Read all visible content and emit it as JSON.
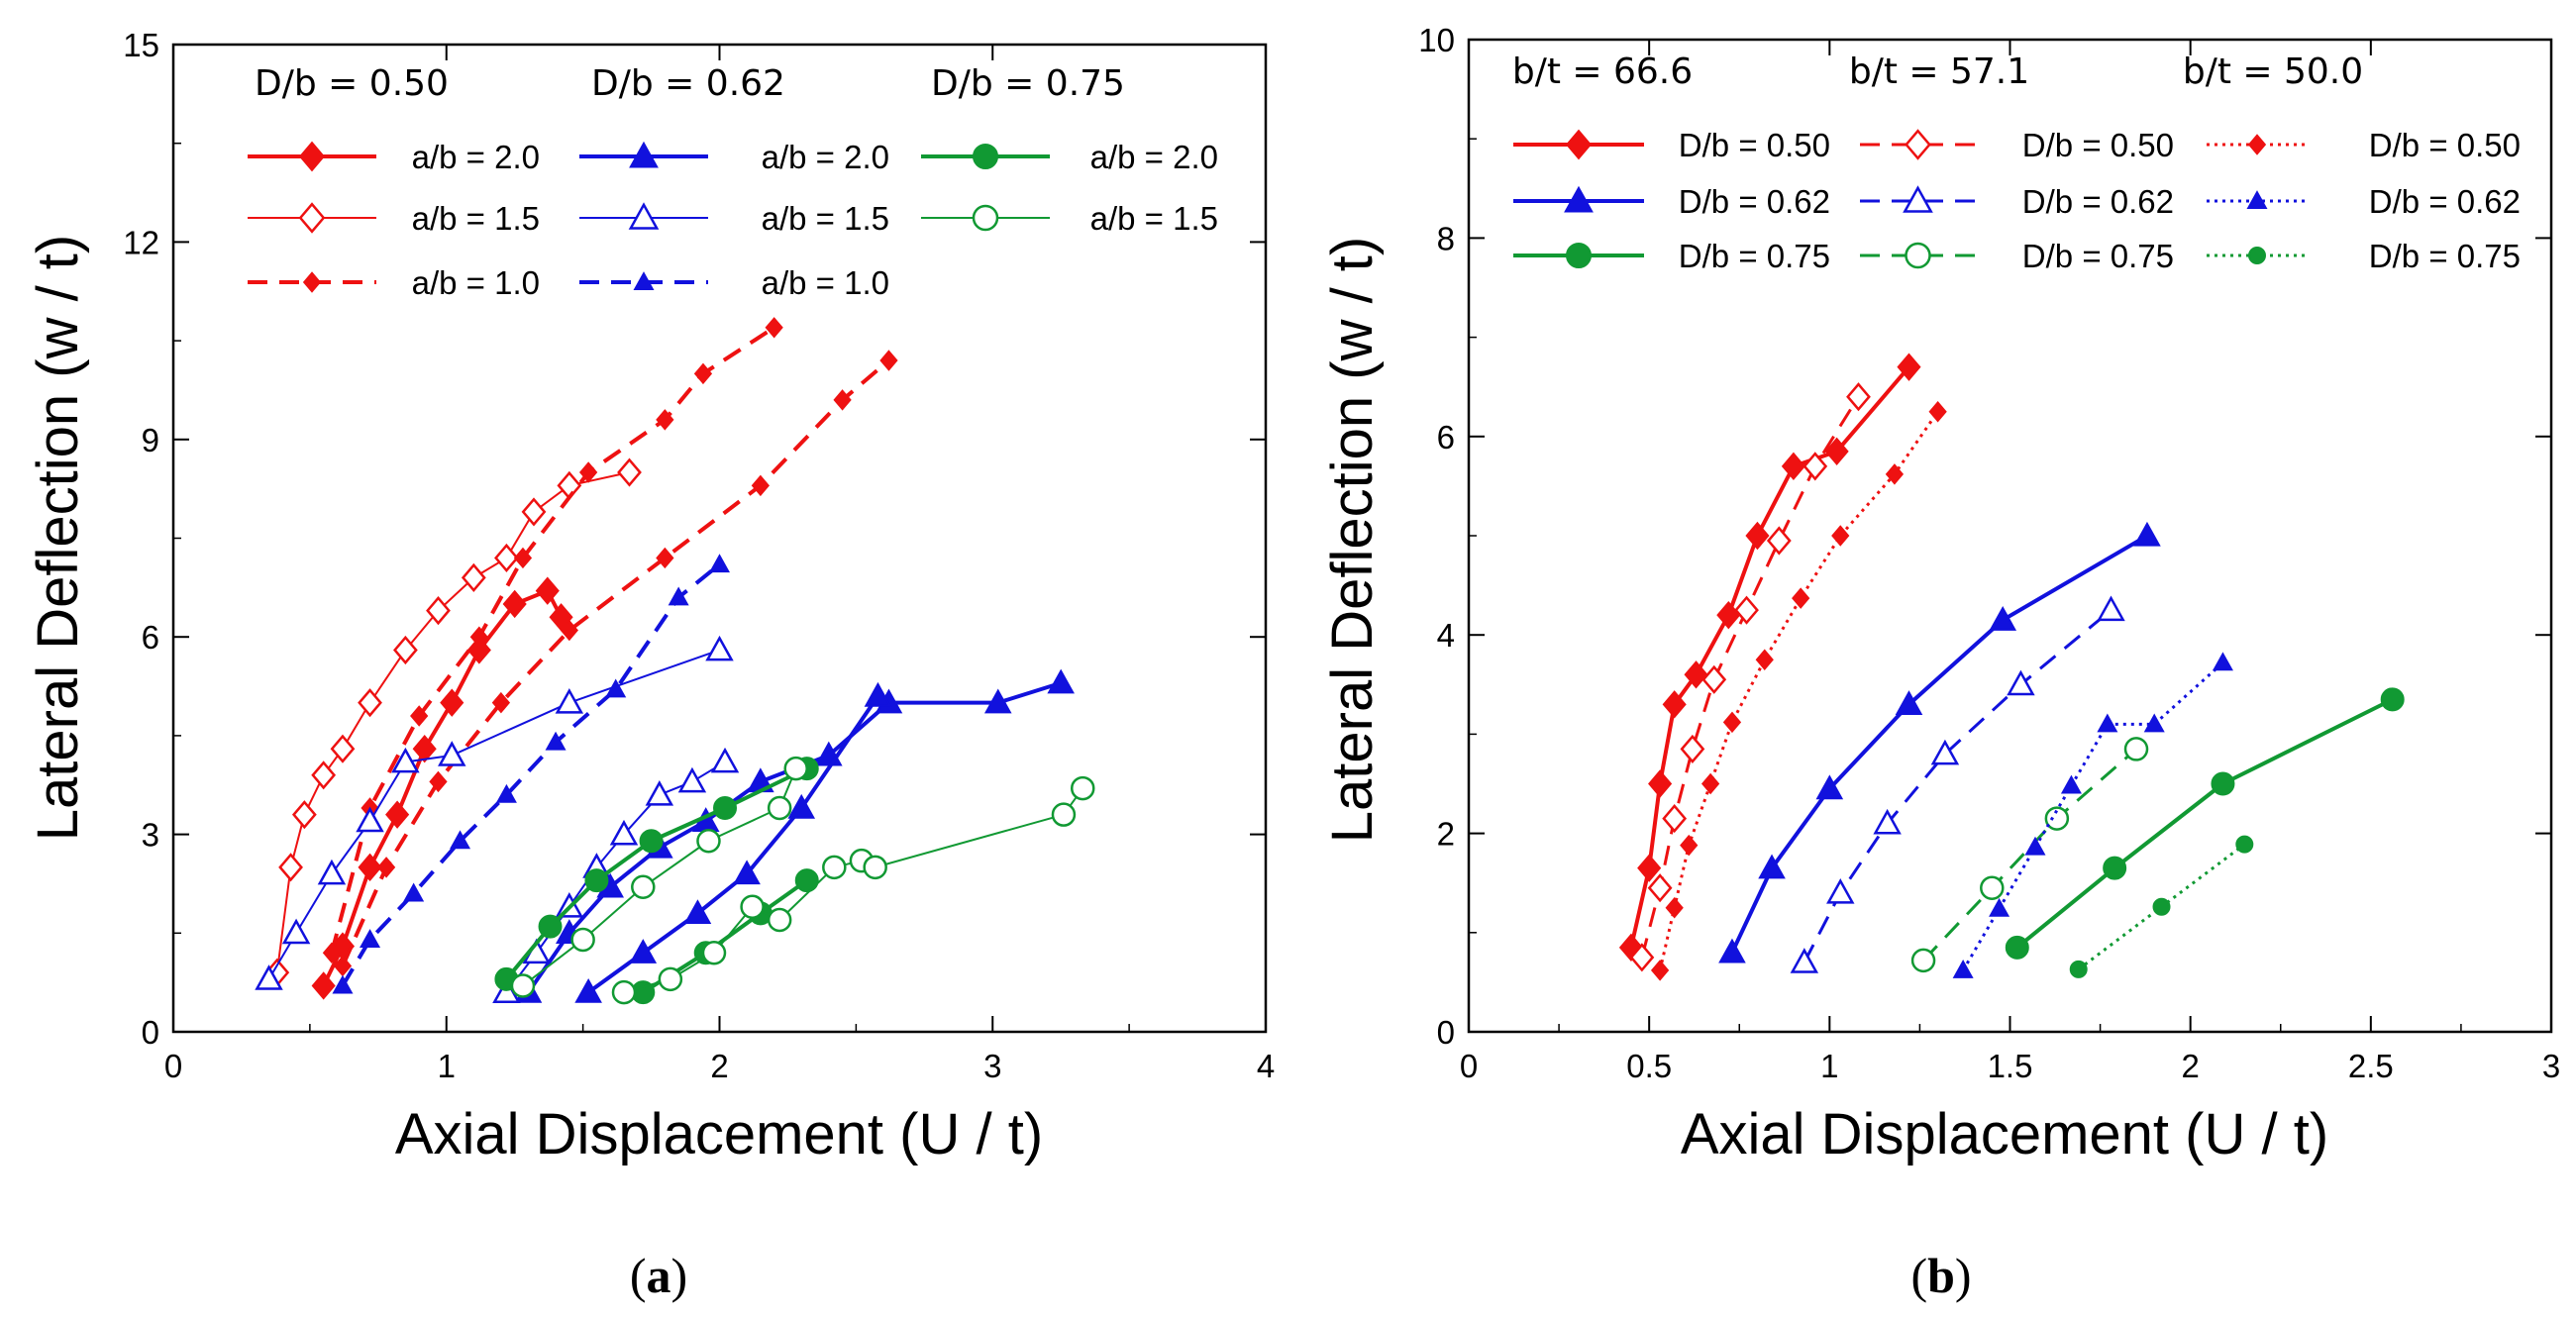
{
  "colors": {
    "red": "#ee1111",
    "blue": "#1111dd",
    "green": "#119933"
  },
  "chart_data": [
    {
      "id": "a",
      "type": "line",
      "caption_letter": "a",
      "xlabel": "Axial Displacement (U / t)",
      "ylabel": "Lateral Deflection (w / t)",
      "xlim": [
        0,
        4
      ],
      "ylim": [
        0,
        15
      ],
      "xticks": [
        "0",
        "1",
        "2",
        "3",
        "4"
      ],
      "yticks": [
        "0",
        "3",
        "6",
        "9",
        "12",
        "15"
      ],
      "legend_headers": [
        "D/b = 0.50",
        "D/b = 0.62",
        "D/b = 0.75"
      ],
      "series": [
        {
          "name": "a/b = 2.0",
          "group": "D/b = 0.50",
          "color": "red",
          "marker": "diamond",
          "fill": "filled",
          "dash": "solid",
          "width": 4,
          "x": [
            0.55,
            0.62,
            0.72,
            0.82,
            0.92,
            1.02,
            1.12,
            1.25,
            1.37,
            1.42
          ],
          "y": [
            0.7,
            1.3,
            2.5,
            3.3,
            4.3,
            5.0,
            5.8,
            6.5,
            6.7,
            6.3
          ]
        },
        {
          "name": "a/b = 1.5",
          "group": "D/b = 0.50",
          "color": "red",
          "marker": "diamond",
          "fill": "open",
          "dash": "solid",
          "width": 2,
          "x": [
            0.38,
            0.43,
            0.48,
            0.55,
            0.62,
            0.72,
            0.85,
            0.97,
            1.1,
            1.22,
            1.32,
            1.45,
            1.67
          ],
          "y": [
            0.9,
            2.5,
            3.3,
            3.9,
            4.3,
            5.0,
            5.8,
            6.4,
            6.9,
            7.2,
            7.9,
            8.3,
            8.5
          ]
        },
        {
          "name": "a/b = 1.0",
          "group": "D/b = 0.50",
          "color": "red",
          "marker": "diamond",
          "fill": "filled",
          "dash": "dashed",
          "width": 4,
          "small": true,
          "x": [
            0.58,
            0.72,
            0.9,
            1.12,
            1.28,
            1.52,
            1.8,
            1.94,
            2.2
          ],
          "y": [
            1.2,
            3.4,
            4.8,
            6.0,
            7.2,
            8.5,
            9.3,
            10.0,
            10.7
          ]
        },
        {
          "name": "a/b = 1.0 (series 2)",
          "group": "D/b = 0.50",
          "color": "red",
          "marker": "diamond",
          "fill": "filled",
          "dash": "dashed",
          "width": 4,
          "small": true,
          "legend": false,
          "x": [
            0.62,
            0.78,
            0.97,
            1.2,
            1.45,
            1.8,
            2.15,
            2.45,
            2.62
          ],
          "y": [
            1.0,
            2.5,
            3.8,
            5.0,
            6.1,
            7.2,
            8.3,
            9.6,
            10.2
          ]
        },
        {
          "name": "a/b = 2.0",
          "group": "D/b = 0.62",
          "color": "blue",
          "marker": "triangle",
          "fill": "filled",
          "dash": "solid",
          "width": 4,
          "x": [
            1.3,
            1.45,
            1.6,
            1.78,
            1.95,
            2.15,
            2.4,
            2.62,
            3.02,
            3.25
          ],
          "y": [
            0.6,
            1.5,
            2.2,
            2.8,
            3.2,
            3.8,
            4.2,
            5.0,
            5.0,
            5.3
          ]
        },
        {
          "name": "a/b = 2.0 (series 2)",
          "group": "D/b = 0.62",
          "color": "blue",
          "marker": "triangle",
          "fill": "filled",
          "dash": "solid",
          "width": 4,
          "legend": false,
          "x": [
            1.52,
            1.72,
            1.92,
            2.1,
            2.3,
            2.58
          ],
          "y": [
            0.6,
            1.2,
            1.8,
            2.4,
            3.4,
            5.1
          ]
        },
        {
          "name": "a/b = 1.5",
          "group": "D/b = 0.62",
          "color": "blue",
          "marker": "triangle",
          "fill": "open",
          "dash": "solid",
          "width": 2,
          "x": [
            0.35,
            0.45,
            0.58,
            0.72,
            0.85,
            1.02,
            1.45,
            2.0
          ],
          "y": [
            0.8,
            1.5,
            2.4,
            3.2,
            4.1,
            4.2,
            5.0,
            5.8
          ]
        },
        {
          "name": "a/b = 1.5 (series 2)",
          "group": "D/b = 0.62",
          "color": "blue",
          "marker": "triangle",
          "fill": "open",
          "dash": "solid",
          "width": 2,
          "legend": false,
          "x": [
            1.22,
            1.33,
            1.45,
            1.55,
            1.65,
            1.78,
            1.9,
            2.02
          ],
          "y": [
            0.6,
            1.2,
            1.9,
            2.5,
            3.0,
            3.6,
            3.8,
            4.1
          ]
        },
        {
          "name": "a/b = 1.0",
          "group": "D/b = 0.62",
          "color": "blue",
          "marker": "triangle",
          "fill": "filled",
          "dash": "dashed",
          "width": 4,
          "small": true,
          "x": [
            0.62,
            0.72,
            0.88,
            1.05,
            1.22,
            1.4,
            1.62,
            1.85,
            2.0
          ],
          "y": [
            0.7,
            1.4,
            2.1,
            2.9,
            3.6,
            4.4,
            5.2,
            6.6,
            7.1
          ]
        },
        {
          "name": "a/b = 2.0",
          "group": "D/b = 0.75",
          "color": "green",
          "marker": "circle",
          "fill": "filled",
          "dash": "solid",
          "width": 4,
          "x": [
            1.22,
            1.38,
            1.55,
            1.75,
            2.02,
            2.32
          ],
          "y": [
            0.8,
            1.6,
            2.3,
            2.9,
            3.4,
            4.0
          ]
        },
        {
          "name": "a/b = 2.0 (series 2)",
          "group": "D/b = 0.75",
          "color": "green",
          "marker": "circle",
          "fill": "filled",
          "dash": "solid",
          "width": 4,
          "legend": false,
          "x": [
            1.72,
            1.95,
            2.15,
            2.32
          ],
          "y": [
            0.6,
            1.2,
            1.8,
            2.3
          ]
        },
        {
          "name": "a/b = 1.5",
          "group": "D/b = 0.75",
          "color": "green",
          "marker": "circle",
          "fill": "open",
          "dash": "solid",
          "width": 2,
          "x": [
            1.28,
            1.5,
            1.72,
            1.96,
            2.22,
            2.28
          ],
          "y": [
            0.7,
            1.4,
            2.2,
            2.9,
            3.4,
            4.0
          ]
        },
        {
          "name": "a/b = 1.5 (series 2)",
          "group": "D/b = 0.75",
          "color": "green",
          "marker": "circle",
          "fill": "open",
          "dash": "solid",
          "width": 2,
          "legend": false,
          "x": [
            1.65,
            1.82,
            1.98,
            2.12,
            2.22,
            2.42,
            2.52,
            2.57,
            3.26,
            3.33
          ],
          "y": [
            0.6,
            0.8,
            1.2,
            1.9,
            1.7,
            2.5,
            2.6,
            2.5,
            3.3,
            3.7
          ]
        }
      ],
      "legend_rows": [
        [
          "a/b = 2.0",
          "a/b = 2.0",
          "a/b = 2.0"
        ],
        [
          "a/b = 1.5",
          "a/b = 1.5",
          "a/b = 1.5"
        ],
        [
          "a/b = 1.0",
          "a/b = 1.0",
          ""
        ]
      ]
    },
    {
      "id": "b",
      "type": "line",
      "caption_letter": "b",
      "xlabel": "Axial Displacement (U / t)",
      "ylabel": "Lateral Deflection (w / t)",
      "xlim": [
        0,
        3
      ],
      "ylim": [
        0,
        10
      ],
      "xticks": [
        "0",
        "0.5",
        "1",
        "1.5",
        "2",
        "2.5",
        "3"
      ],
      "yticks": [
        "0",
        "2",
        "4",
        "6",
        "8",
        "10"
      ],
      "legend_headers": [
        "b/t = 66.6",
        "b/t = 57.1",
        "b/t = 50.0"
      ],
      "series": [
        {
          "name": "D/b = 0.50",
          "group": "b/t = 66.6",
          "color": "red",
          "marker": "diamond",
          "fill": "filled",
          "dash": "solid",
          "width": 4,
          "x": [
            0.45,
            0.5,
            0.53,
            0.57,
            0.63,
            0.72,
            0.8,
            0.9,
            1.02,
            1.22
          ],
          "y": [
            0.85,
            1.65,
            2.5,
            3.3,
            3.6,
            4.2,
            5.0,
            5.7,
            5.85,
            6.7
          ]
        },
        {
          "name": "D/b = 0.62",
          "group": "b/t = 66.6",
          "color": "blue",
          "marker": "triangle",
          "fill": "filled",
          "dash": "solid",
          "width": 4,
          "x": [
            0.73,
            0.84,
            1.0,
            1.22,
            1.48,
            1.88
          ],
          "y": [
            0.8,
            1.65,
            2.45,
            3.3,
            4.15,
            5.0
          ]
        },
        {
          "name": "D/b = 0.75",
          "group": "b/t = 66.6",
          "color": "green",
          "marker": "circle",
          "fill": "filled",
          "dash": "solid",
          "width": 4,
          "x": [
            1.52,
            1.79,
            2.09,
            2.56
          ],
          "y": [
            0.85,
            1.65,
            2.5,
            3.35
          ]
        },
        {
          "name": "D/b = 0.50",
          "group": "b/t = 57.1",
          "color": "red",
          "marker": "diamond",
          "fill": "open",
          "dash": "dashed",
          "width": 3,
          "x": [
            0.48,
            0.53,
            0.57,
            0.62,
            0.68,
            0.77,
            0.86,
            0.96,
            1.08
          ],
          "y": [
            0.75,
            1.45,
            2.15,
            2.85,
            3.55,
            4.25,
            4.95,
            5.7,
            6.4
          ]
        },
        {
          "name": "D/b = 0.62",
          "group": "b/t = 57.1",
          "color": "blue",
          "marker": "triangle",
          "fill": "open",
          "dash": "dashed",
          "width": 3,
          "x": [
            0.93,
            1.03,
            1.16,
            1.32,
            1.53,
            1.78
          ],
          "y": [
            0.7,
            1.4,
            2.1,
            2.8,
            3.5,
            4.25
          ]
        },
        {
          "name": "D/b = 0.75",
          "group": "b/t = 57.1",
          "color": "green",
          "marker": "circle",
          "fill": "open",
          "dash": "dashed",
          "width": 3,
          "x": [
            1.26,
            1.45,
            1.63,
            1.85
          ],
          "y": [
            0.72,
            1.45,
            2.15,
            2.85
          ]
        },
        {
          "name": "D/b = 0.50",
          "group": "b/t = 50.0",
          "color": "red",
          "marker": "diamond",
          "fill": "filled",
          "dash": "dotted",
          "width": 3,
          "small": true,
          "x": [
            0.53,
            0.57,
            0.61,
            0.67,
            0.73,
            0.82,
            0.92,
            1.03,
            1.18,
            1.3
          ],
          "y": [
            0.62,
            1.25,
            1.88,
            2.5,
            3.12,
            3.75,
            4.37,
            5.0,
            5.62,
            6.25
          ]
        },
        {
          "name": "D/b = 0.62",
          "group": "b/t = 50.0",
          "color": "blue",
          "marker": "triangle",
          "fill": "filled",
          "dash": "dotted",
          "width": 3,
          "small": true,
          "x": [
            1.37,
            1.47,
            1.57,
            1.67,
            1.77,
            1.9,
            2.09
          ],
          "y": [
            0.62,
            1.24,
            1.86,
            2.48,
            3.1,
            3.1,
            3.72
          ]
        },
        {
          "name": "D/b = 0.75",
          "group": "b/t = 50.0",
          "color": "green",
          "marker": "circle",
          "fill": "filled",
          "dash": "dotted",
          "width": 3,
          "small": true,
          "x": [
            1.69,
            1.92,
            2.15
          ],
          "y": [
            0.63,
            1.26,
            1.89
          ]
        }
      ],
      "legend_rows": [
        [
          "D/b = 0.50",
          "D/b = 0.50",
          "D/b = 0.50"
        ],
        [
          "D/b = 0.62",
          "D/b = 0.62",
          "D/b = 0.62"
        ],
        [
          "D/b = 0.75",
          "D/b = 0.75",
          "D/b = 0.75"
        ]
      ]
    }
  ]
}
